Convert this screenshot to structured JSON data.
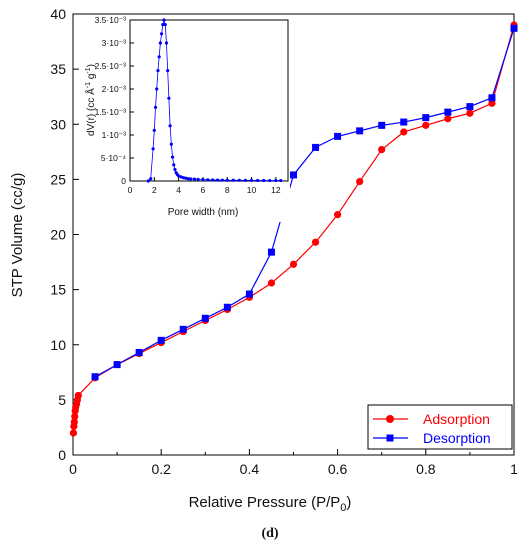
{
  "chart_data": [
    {
      "type": "line",
      "title": "",
      "xlabel": "Relative Pressure (P/P0)",
      "xlabel_main": "Relative Pressure (P/P",
      "xlabel_sub": "0",
      "xlabel_close": ")",
      "ylabel": "STP Volume (cc/g)",
      "xlim": [
        0,
        1
      ],
      "ylim": [
        0,
        40
      ],
      "x_ticks": [
        "0",
        "0.2",
        "0.4",
        "0.6",
        "0.8",
        "1"
      ],
      "y_ticks": [
        "0",
        "5",
        "10",
        "15",
        "20",
        "25",
        "30",
        "35",
        "40"
      ],
      "grid": false,
      "legend_position": "bottom-right",
      "series": [
        {
          "name": "Adsorption",
          "color": "#ff0000",
          "marker": "circle",
          "x": [
            0.001,
            0.002,
            0.003,
            0.004,
            0.005,
            0.006,
            0.008,
            0.01,
            0.012,
            0.05,
            0.1,
            0.15,
            0.2,
            0.25,
            0.3,
            0.35,
            0.4,
            0.45,
            0.5,
            0.55,
            0.6,
            0.65,
            0.7,
            0.75,
            0.8,
            0.85,
            0.9,
            0.95,
            1.0
          ],
          "y": [
            2.0,
            2.6,
            3.0,
            3.5,
            4.0,
            4.3,
            4.6,
            5.0,
            5.4,
            7.0,
            8.2,
            9.2,
            10.2,
            11.2,
            12.2,
            13.2,
            14.3,
            15.6,
            17.3,
            19.3,
            21.8,
            24.8,
            27.7,
            29.3,
            29.9,
            30.5,
            31.0,
            31.9,
            39.0
          ]
        },
        {
          "name": "Desorption",
          "color": "#0000ff",
          "marker": "square",
          "x": [
            1.0,
            0.95,
            0.9,
            0.85,
            0.8,
            0.75,
            0.7,
            0.65,
            0.6,
            0.55,
            0.5,
            0.45,
            0.4,
            0.35,
            0.3,
            0.25,
            0.2,
            0.15,
            0.1,
            0.05
          ],
          "y": [
            38.7,
            32.4,
            31.6,
            31.1,
            30.6,
            30.2,
            29.9,
            29.4,
            28.9,
            27.9,
            25.4,
            18.4,
            14.6,
            13.4,
            12.4,
            11.4,
            10.4,
            9.3,
            8.2,
            7.1
          ]
        }
      ]
    },
    {
      "type": "line",
      "title": "",
      "xlabel": "Pore width (nm)",
      "ylabel": "dV(r) (cc Å⁻¹ g⁻¹)",
      "ylabel_main": "dV(r) (cc Å",
      "ylabel_exp1": "-1",
      "ylabel_mid": " g",
      "ylabel_exp2": "-1",
      "ylabel_close": ")",
      "xlim": [
        0,
        13
      ],
      "ylim": [
        0,
        0.0035
      ],
      "x_ticks": [
        "0",
        "2",
        "4",
        "6",
        "8",
        "10",
        "12"
      ],
      "y_tick_values": [
        0,
        0.0005,
        0.001,
        0.0015,
        0.002,
        0.0025,
        0.003,
        0.0035
      ],
      "y_ticks": [
        "0",
        "5·10⁻⁴",
        "1·10⁻³",
        "1.5·10⁻³",
        "2·10⁻³",
        "2.5·10⁻³",
        "3·10⁻³",
        "3.5·10⁻³"
      ],
      "grid": false,
      "series": [
        {
          "color": "#0000ff",
          "marker": "dot",
          "x": [
            1.5,
            1.7,
            1.9,
            2.0,
            2.1,
            2.2,
            2.3,
            2.4,
            2.5,
            2.6,
            2.7,
            2.8,
            2.9,
            3.0,
            3.1,
            3.2,
            3.3,
            3.4,
            3.5,
            3.6,
            3.7,
            3.8,
            3.9,
            4.0,
            4.2,
            4.4,
            4.6,
            4.8,
            5.0,
            5.3,
            5.6,
            6.0,
            6.4,
            6.8,
            7.2,
            7.6,
            8.0,
            8.5,
            9.0,
            9.5,
            10.0,
            10.5,
            11.0,
            11.5,
            12.0,
            12.4
          ],
          "y": [
            0.0,
            5e-05,
            0.0007,
            0.0011,
            0.0016,
            0.002,
            0.0024,
            0.0027,
            0.003,
            0.0032,
            0.0034,
            0.0035,
            0.0034,
            0.003,
            0.0024,
            0.0018,
            0.0012,
            0.0008,
            0.00052,
            0.00035,
            0.00025,
            0.00018,
            0.00014,
            0.00011,
            9e-05,
            7e-05,
            6e-05,
            5e-05,
            4.5e-05,
            4e-05,
            3.5e-05,
            3e-05,
            2.5e-05,
            2.2e-05,
            2e-05,
            1.8e-05,
            1.7e-05,
            1.6e-05,
            1.5e-05,
            1.4e-05,
            1.3e-05,
            1.2e-05,
            1.1e-05,
            1e-05,
            1e-05,
            1e-05
          ]
        }
      ]
    }
  ],
  "panel_label": "(d)"
}
